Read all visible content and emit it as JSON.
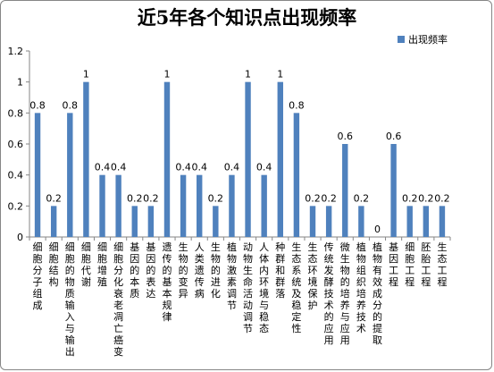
{
  "chart_data": {
    "type": "bar",
    "title": "近5年各个知识点出现频率",
    "xlabel": "",
    "ylabel": "",
    "ylim": [
      0,
      1.2
    ],
    "yticks": [
      "0",
      "0.2",
      "0.4",
      "0.6",
      "0.8",
      "1",
      "1.2"
    ],
    "grid": false,
    "legend": "right",
    "categories": [
      "细胞分子组成",
      "细胞结构",
      "细胞的物质输入与输出",
      "细胞代谢",
      "细胞增殖",
      "细胞分化衰老凋亡癌变",
      "基因的本质",
      "基因的表达",
      "遗传的基本规律",
      "生物的变异",
      "人类遗传病",
      "生物的进化",
      "植物激素调节",
      "动物生命活动调节",
      "人体内环境与稳态",
      "种群和群落",
      "生态系统及稳定性",
      "生态环境保护",
      "传统发酵技术的应用",
      "微生物的培养与应用",
      "植物组织培养技术",
      "植物有效成分的提取",
      "基因工程",
      "细胞工程",
      "胚胎工程",
      "生态工程"
    ],
    "series": [
      {
        "name": "出现频率",
        "color": "#4F81BD",
        "values": [
          0.8,
          0.2,
          0.8,
          1,
          0.4,
          0.4,
          0.2,
          0.2,
          1,
          0.4,
          0.4,
          0.2,
          0.4,
          1,
          0.4,
          1,
          0.8,
          0.2,
          0.2,
          0.6,
          0.2,
          0,
          0.6,
          0.2,
          0.2,
          0.2
        ]
      }
    ]
  }
}
